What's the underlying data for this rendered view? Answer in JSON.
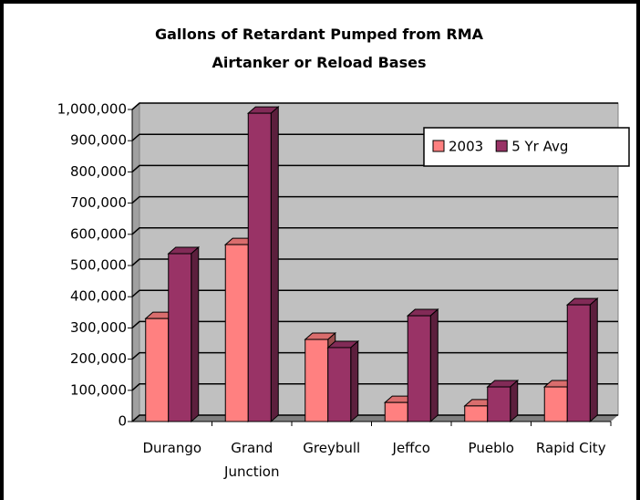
{
  "chart_data": {
    "type": "bar3d",
    "title": "Gallons of Retardant Pumped from RMA Airtanker or Reload Bases",
    "categories": [
      "Durango",
      "Grand Junction",
      "Greybull",
      "Jeffco",
      "Pueblo",
      "Rapid City"
    ],
    "series": [
      {
        "name": "2003",
        "color": "#ff8080",
        "values": [
          330000,
          567000,
          263000,
          61000,
          50000,
          111000
        ]
      },
      {
        "name": "5 Yr Avg",
        "color": "#993366",
        "values": [
          538000,
          988000,
          237000,
          339000,
          111000,
          374000
        ]
      }
    ],
    "ylim": [
      0,
      1000000
    ],
    "yticks": [
      {
        "value": 0,
        "label": "0"
      },
      {
        "value": 100000,
        "label": "100,000"
      },
      {
        "value": 200000,
        "label": "200,000"
      },
      {
        "value": 300000,
        "label": "300,000"
      },
      {
        "value": 400000,
        "label": "400,000"
      },
      {
        "value": 500000,
        "label": "500,000"
      },
      {
        "value": 600000,
        "label": "600,000"
      },
      {
        "value": 700000,
        "label": "700,000"
      },
      {
        "value": 800000,
        "label": "800,000"
      },
      {
        "value": 900000,
        "label": "900,000"
      },
      {
        "value": 1000000,
        "label": "1,000,000"
      }
    ],
    "grid": true,
    "legend": "top-right"
  }
}
